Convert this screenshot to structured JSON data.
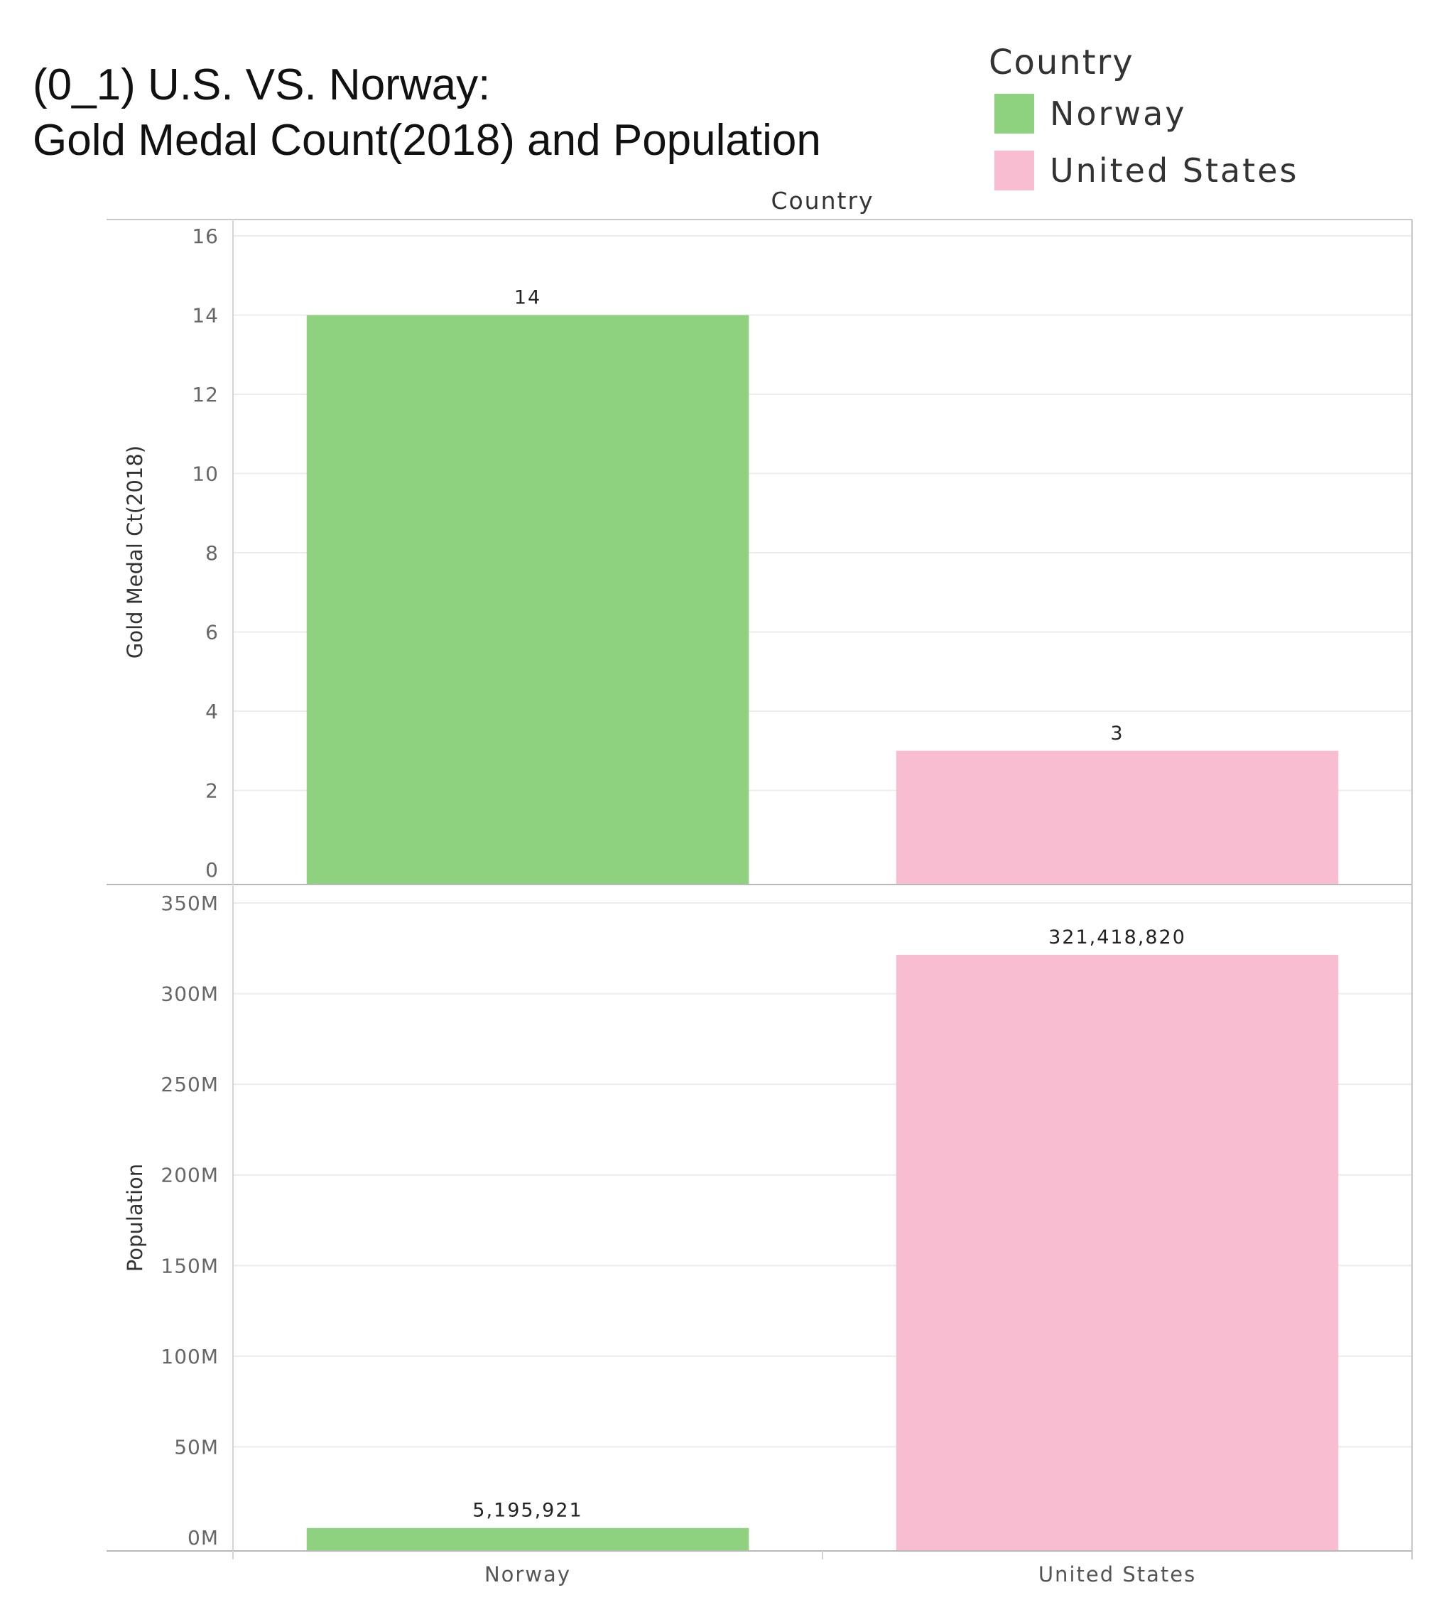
{
  "chart_data": {
    "type": "bar",
    "title": "(0_1) U.S. VS. Norway:",
    "subtitle": "Gold Medal Count(2018) and Population",
    "column_header": "Country",
    "categories": [
      "Norway",
      "United States"
    ],
    "colors": {
      "Norway": "#8ed17e",
      "United States": "#f9bdd2"
    },
    "legend": {
      "title": "Country",
      "position": "top-right",
      "entries": [
        "Norway",
        "United States"
      ]
    },
    "grid": true,
    "panels": [
      {
        "ylabel": "Gold Medal Ct(2018)",
        "ylim": [
          0,
          16
        ],
        "yticks": [
          0,
          2,
          4,
          6,
          8,
          10,
          12,
          14,
          16
        ],
        "ytick_labels": [
          "0",
          "2",
          "4",
          "6",
          "8",
          "10",
          "12",
          "14",
          "16"
        ],
        "values": [
          14,
          3
        ],
        "value_labels": [
          "14",
          "3"
        ]
      },
      {
        "ylabel": "Population",
        "ylim": [
          0,
          350000000
        ],
        "yticks": [
          0,
          50000000,
          100000000,
          150000000,
          200000000,
          250000000,
          300000000,
          350000000
        ],
        "ytick_labels": [
          "0M",
          "50M",
          "100M",
          "150M",
          "200M",
          "250M",
          "300M",
          "350M"
        ],
        "values": [
          5195921,
          321418820
        ],
        "value_labels": [
          "5,195,921",
          "321,418,820"
        ]
      }
    ]
  }
}
